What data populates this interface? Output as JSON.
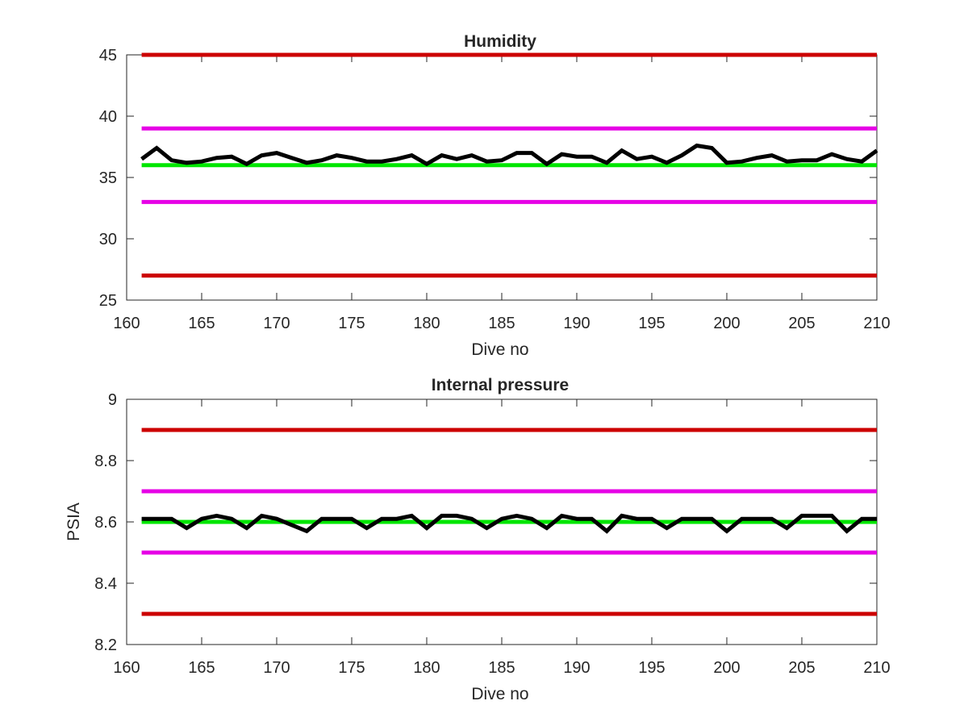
{
  "chart_data": [
    {
      "type": "line",
      "title": "Humidity",
      "xlabel": "Dive no",
      "ylabel": "",
      "xlim": [
        160,
        210
      ],
      "ylim": [
        25,
        45
      ],
      "xticks": [
        160,
        165,
        170,
        175,
        180,
        185,
        190,
        195,
        200,
        205,
        210
      ],
      "yticks": [
        25,
        30,
        35,
        40,
        45
      ],
      "grid": false,
      "legend": "none",
      "reference_lines": [
        {
          "y": 45,
          "color": "#cc0000"
        },
        {
          "y": 39,
          "color": "#e600e6"
        },
        {
          "y": 36,
          "color": "#00e600"
        },
        {
          "y": 33,
          "color": "#e600e6"
        },
        {
          "y": 27,
          "color": "#cc0000"
        }
      ],
      "series": [
        {
          "color": "#000000",
          "x": [
            161,
            162,
            163,
            164,
            165,
            166,
            167,
            168,
            169,
            170,
            171,
            172,
            173,
            174,
            175,
            176,
            177,
            178,
            179,
            180,
            181,
            182,
            183,
            184,
            185,
            186,
            187,
            188,
            189,
            190,
            191,
            192,
            193,
            194,
            195,
            196,
            197,
            198,
            199,
            200,
            201,
            202,
            203,
            204,
            205,
            206,
            207,
            208,
            209,
            210
          ],
          "values": [
            36.5,
            37.4,
            36.4,
            36.2,
            36.3,
            36.6,
            36.7,
            36.1,
            36.8,
            37.0,
            36.6,
            36.2,
            36.4,
            36.8,
            36.6,
            36.3,
            36.3,
            36.5,
            36.8,
            36.1,
            36.8,
            36.5,
            36.8,
            36.3,
            36.4,
            37.0,
            37.0,
            36.1,
            36.9,
            36.7,
            36.7,
            36.2,
            37.2,
            36.5,
            36.7,
            36.2,
            36.8,
            37.6,
            37.4,
            36.2,
            36.3,
            36.6,
            36.8,
            36.3,
            36.4,
            36.4,
            36.9,
            36.5,
            36.3,
            37.2
          ]
        }
      ]
    },
    {
      "type": "line",
      "title": "Internal pressure",
      "xlabel": "Dive no",
      "ylabel": "PSIA",
      "xlim": [
        160,
        210
      ],
      "ylim": [
        8.2,
        9
      ],
      "xticks": [
        160,
        165,
        170,
        175,
        180,
        185,
        190,
        195,
        200,
        205,
        210
      ],
      "yticks": [
        8.2,
        8.4,
        8.6,
        8.8,
        9
      ],
      "grid": false,
      "legend": "none",
      "reference_lines": [
        {
          "y": 8.9,
          "color": "#cc0000"
        },
        {
          "y": 8.7,
          "color": "#e600e6"
        },
        {
          "y": 8.6,
          "color": "#00e600"
        },
        {
          "y": 8.5,
          "color": "#e600e6"
        },
        {
          "y": 8.3,
          "color": "#cc0000"
        }
      ],
      "series": [
        {
          "color": "#000000",
          "x": [
            161,
            162,
            163,
            164,
            165,
            166,
            167,
            168,
            169,
            170,
            171,
            172,
            173,
            174,
            175,
            176,
            177,
            178,
            179,
            180,
            181,
            182,
            183,
            184,
            185,
            186,
            187,
            188,
            189,
            190,
            191,
            192,
            193,
            194,
            195,
            196,
            197,
            198,
            199,
            200,
            201,
            202,
            203,
            204,
            205,
            206,
            207,
            208,
            209,
            210
          ],
          "values": [
            8.61,
            8.61,
            8.61,
            8.58,
            8.61,
            8.62,
            8.61,
            8.58,
            8.62,
            8.61,
            8.59,
            8.57,
            8.61,
            8.61,
            8.61,
            8.58,
            8.61,
            8.61,
            8.62,
            8.58,
            8.62,
            8.62,
            8.61,
            8.58,
            8.61,
            8.62,
            8.61,
            8.58,
            8.62,
            8.61,
            8.61,
            8.57,
            8.62,
            8.61,
            8.61,
            8.58,
            8.61,
            8.61,
            8.61,
            8.57,
            8.61,
            8.61,
            8.61,
            8.58,
            8.62,
            8.62,
            8.62,
            8.57,
            8.61,
            8.61
          ]
        }
      ]
    }
  ]
}
